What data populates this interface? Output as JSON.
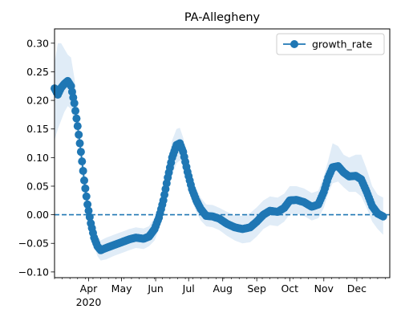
{
  "chart_data": {
    "type": "line",
    "title": "PA-Allegheny",
    "xlabel": "",
    "ylabel": "",
    "x_start": "2020-03-01",
    "x_end": "2020-12-31",
    "x_ticks": [
      {
        "date": "2020-04-01",
        "label": "Apr",
        "sublabel": "2020"
      },
      {
        "date": "2020-05-01",
        "label": "May",
        "sublabel": ""
      },
      {
        "date": "2020-06-01",
        "label": "Jun",
        "sublabel": ""
      },
      {
        "date": "2020-07-01",
        "label": "Jul",
        "sublabel": ""
      },
      {
        "date": "2020-08-01",
        "label": "Aug",
        "sublabel": ""
      },
      {
        "date": "2020-09-01",
        "label": "Sep",
        "sublabel": ""
      },
      {
        "date": "2020-10-01",
        "label": "Oct",
        "sublabel": ""
      },
      {
        "date": "2020-11-01",
        "label": "Nov",
        "sublabel": ""
      },
      {
        "date": "2020-12-01",
        "label": "Dec",
        "sublabel": ""
      }
    ],
    "ylim": [
      -0.11,
      0.325
    ],
    "y_ticks": [
      {
        "value": -0.1,
        "label": "−0.10"
      },
      {
        "value": -0.05,
        "label": "−0.05"
      },
      {
        "value": 0.0,
        "label": "0.00"
      },
      {
        "value": 0.05,
        "label": "0.05"
      },
      {
        "value": 0.1,
        "label": "0.10"
      },
      {
        "value": 0.15,
        "label": "0.15"
      },
      {
        "value": 0.2,
        "label": "0.20"
      },
      {
        "value": 0.25,
        "label": "0.25"
      },
      {
        "value": 0.3,
        "label": "0.30"
      }
    ],
    "reference_line": {
      "y": 0.0,
      "style": "dashed",
      "color": "#1f77b4"
    },
    "legend": {
      "placement": "top-right",
      "entries": [
        "growth_rate"
      ]
    },
    "series": [
      {
        "name": "growth_rate",
        "color": "#1f77b4",
        "band_color": "#d6e6f4",
        "points": [
          {
            "x": "2020-03-01",
            "y": 0.221,
            "lo": 0.13,
            "hi": 0.265
          },
          {
            "x": "2020-03-04",
            "y": 0.21,
            "lo": 0.15,
            "hi": 0.3
          },
          {
            "x": "2020-03-07",
            "y": 0.222,
            "lo": 0.165,
            "hi": 0.3
          },
          {
            "x": "2020-03-10",
            "y": 0.229,
            "lo": 0.18,
            "hi": 0.29
          },
          {
            "x": "2020-03-13",
            "y": 0.234,
            "lo": 0.19,
            "hi": 0.28
          },
          {
            "x": "2020-03-16",
            "y": 0.225,
            "lo": 0.185,
            "hi": 0.275
          },
          {
            "x": "2020-03-19",
            "y": 0.195,
            "lo": 0.16,
            "hi": 0.24
          },
          {
            "x": "2020-03-22",
            "y": 0.155,
            "lo": 0.125,
            "hi": 0.19
          },
          {
            "x": "2020-03-25",
            "y": 0.11,
            "lo": 0.085,
            "hi": 0.14
          },
          {
            "x": "2020-03-28",
            "y": 0.06,
            "lo": 0.04,
            "hi": 0.085
          },
          {
            "x": "2020-03-31",
            "y": 0.018,
            "lo": 0.002,
            "hi": 0.038
          },
          {
            "x": "2020-04-03",
            "y": -0.015,
            "lo": -0.03,
            "hi": 0.003
          },
          {
            "x": "2020-04-06",
            "y": -0.04,
            "lo": -0.055,
            "hi": -0.023
          },
          {
            "x": "2020-04-09",
            "y": -0.055,
            "lo": -0.072,
            "hi": -0.038
          },
          {
            "x": "2020-04-12",
            "y": -0.062,
            "lo": -0.08,
            "hi": -0.045
          },
          {
            "x": "2020-04-17",
            "y": -0.058,
            "lo": -0.078,
            "hi": -0.04
          },
          {
            "x": "2020-04-24",
            "y": -0.053,
            "lo": -0.072,
            "hi": -0.035
          },
          {
            "x": "2020-05-01",
            "y": -0.048,
            "lo": -0.067,
            "hi": -0.03
          },
          {
            "x": "2020-05-08",
            "y": -0.043,
            "lo": -0.062,
            "hi": -0.025
          },
          {
            "x": "2020-05-14",
            "y": -0.04,
            "lo": -0.058,
            "hi": -0.022
          },
          {
            "x": "2020-05-21",
            "y": -0.042,
            "lo": -0.06,
            "hi": -0.024
          },
          {
            "x": "2020-05-26",
            "y": -0.038,
            "lo": -0.055,
            "hi": -0.02
          },
          {
            "x": "2020-05-31",
            "y": -0.025,
            "lo": -0.045,
            "hi": -0.005
          },
          {
            "x": "2020-06-04",
            "y": -0.005,
            "lo": -0.025,
            "hi": 0.015
          },
          {
            "x": "2020-06-08",
            "y": 0.025,
            "lo": 0.005,
            "hi": 0.045
          },
          {
            "x": "2020-06-12",
            "y": 0.065,
            "lo": 0.04,
            "hi": 0.09
          },
          {
            "x": "2020-06-16",
            "y": 0.1,
            "lo": 0.07,
            "hi": 0.13
          },
          {
            "x": "2020-06-20",
            "y": 0.122,
            "lo": 0.09,
            "hi": 0.15
          },
          {
            "x": "2020-06-23",
            "y": 0.125,
            "lo": 0.095,
            "hi": 0.152
          },
          {
            "x": "2020-06-26",
            "y": 0.11,
            "lo": 0.085,
            "hi": 0.135
          },
          {
            "x": "2020-06-30",
            "y": 0.075,
            "lo": 0.052,
            "hi": 0.098
          },
          {
            "x": "2020-07-04",
            "y": 0.045,
            "lo": 0.025,
            "hi": 0.065
          },
          {
            "x": "2020-07-08",
            "y": 0.025,
            "lo": 0.005,
            "hi": 0.045
          },
          {
            "x": "2020-07-12",
            "y": 0.01,
            "lo": -0.01,
            "hi": 0.03
          },
          {
            "x": "2020-07-17",
            "y": -0.002,
            "lo": -0.02,
            "hi": 0.018
          },
          {
            "x": "2020-07-23",
            "y": -0.003,
            "lo": -0.022,
            "hi": 0.017
          },
          {
            "x": "2020-07-29",
            "y": -0.007,
            "lo": -0.027,
            "hi": 0.012
          },
          {
            "x": "2020-08-05",
            "y": -0.016,
            "lo": -0.037,
            "hi": 0.005
          },
          {
            "x": "2020-08-12",
            "y": -0.022,
            "lo": -0.045,
            "hi": -0.001
          },
          {
            "x": "2020-08-19",
            "y": -0.025,
            "lo": -0.05,
            "hi": -0.002
          },
          {
            "x": "2020-08-26",
            "y": -0.022,
            "lo": -0.048,
            "hi": 0.003
          },
          {
            "x": "2020-09-01",
            "y": -0.012,
            "lo": -0.038,
            "hi": 0.013
          },
          {
            "x": "2020-09-07",
            "y": 0.0,
            "lo": -0.025,
            "hi": 0.025
          },
          {
            "x": "2020-09-13",
            "y": 0.007,
            "lo": -0.018,
            "hi": 0.032
          },
          {
            "x": "2020-09-20",
            "y": 0.005,
            "lo": -0.02,
            "hi": 0.03
          },
          {
            "x": "2020-09-26",
            "y": 0.012,
            "lo": -0.012,
            "hi": 0.037
          },
          {
            "x": "2020-10-01",
            "y": 0.025,
            "lo": 0.001,
            "hi": 0.05
          },
          {
            "x": "2020-10-07",
            "y": 0.026,
            "lo": 0.002,
            "hi": 0.05
          },
          {
            "x": "2020-10-14",
            "y": 0.022,
            "lo": -0.002,
            "hi": 0.046
          },
          {
            "x": "2020-10-21",
            "y": 0.014,
            "lo": -0.01,
            "hi": 0.038
          },
          {
            "x": "2020-10-27",
            "y": 0.018,
            "lo": -0.006,
            "hi": 0.042
          },
          {
            "x": "2020-11-01",
            "y": 0.04,
            "lo": 0.012,
            "hi": 0.068
          },
          {
            "x": "2020-11-05",
            "y": 0.065,
            "lo": 0.038,
            "hi": 0.095
          },
          {
            "x": "2020-11-09",
            "y": 0.083,
            "lo": 0.055,
            "hi": 0.125
          },
          {
            "x": "2020-11-14",
            "y": 0.085,
            "lo": 0.058,
            "hi": 0.12
          },
          {
            "x": "2020-11-19",
            "y": 0.074,
            "lo": 0.048,
            "hi": 0.105
          },
          {
            "x": "2020-11-24",
            "y": 0.067,
            "lo": 0.04,
            "hi": 0.1
          },
          {
            "x": "2020-11-30",
            "y": 0.068,
            "lo": 0.04,
            "hi": 0.105
          },
          {
            "x": "2020-12-05",
            "y": 0.062,
            "lo": 0.032,
            "hi": 0.105
          },
          {
            "x": "2020-12-10",
            "y": 0.04,
            "lo": 0.012,
            "hi": 0.08
          },
          {
            "x": "2020-12-15",
            "y": 0.015,
            "lo": -0.012,
            "hi": 0.05
          },
          {
            "x": "2020-12-20",
            "y": 0.002,
            "lo": -0.025,
            "hi": 0.035
          },
          {
            "x": "2020-12-25",
            "y": -0.003,
            "lo": -0.035,
            "hi": 0.03
          }
        ]
      }
    ]
  }
}
